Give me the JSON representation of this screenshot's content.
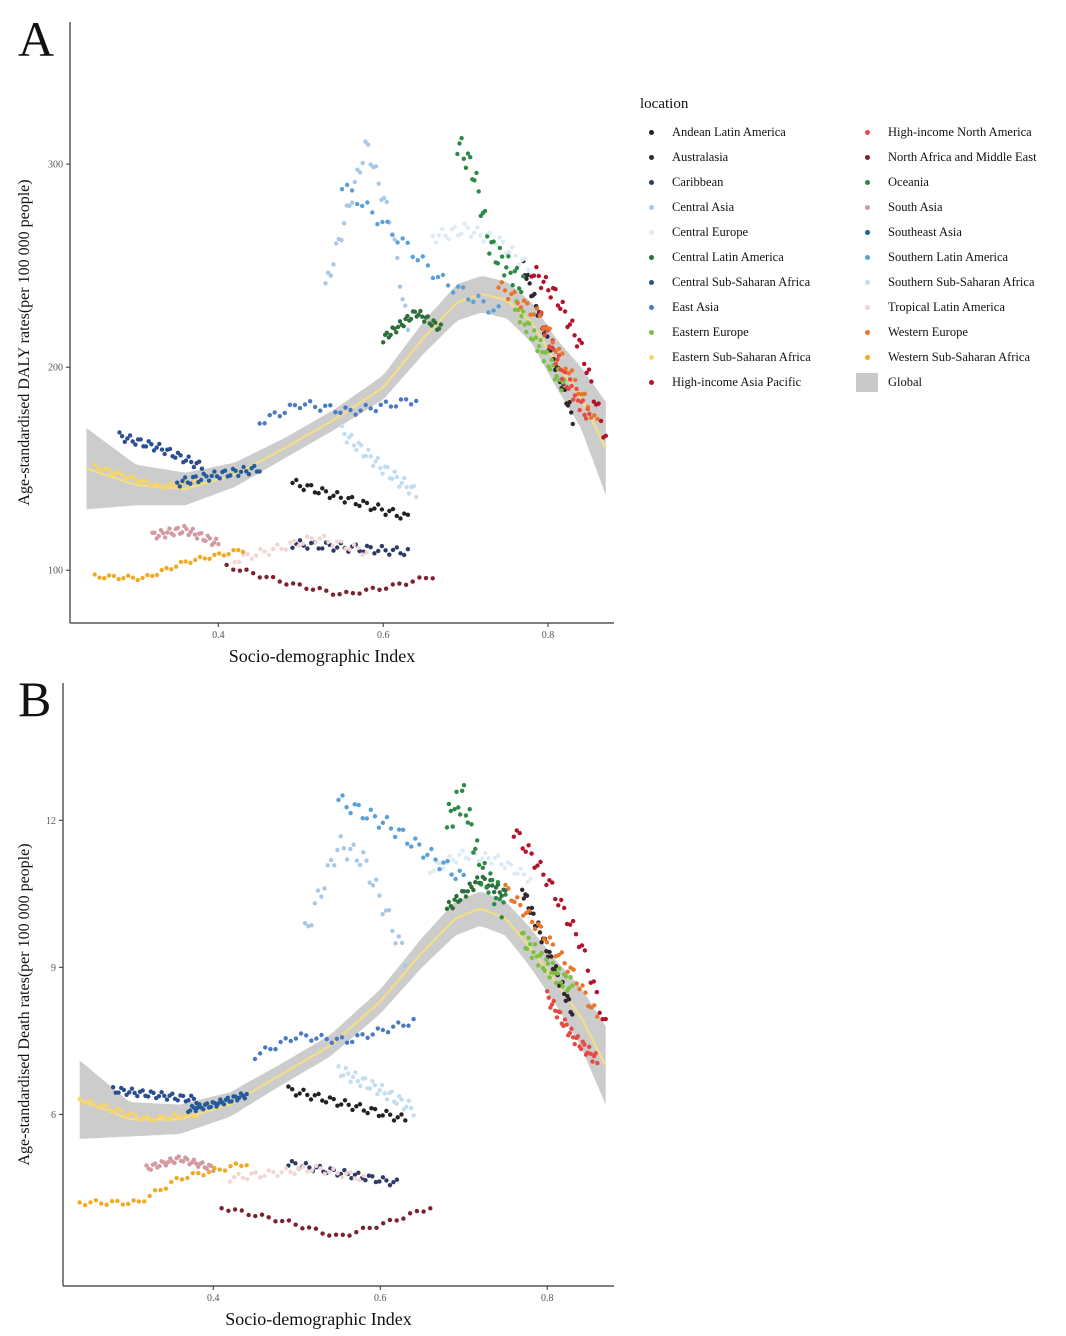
{
  "legend": {
    "title": "location",
    "items": [
      {
        "label": "Andean Latin America",
        "color": "#222222"
      },
      {
        "label": "Australasia",
        "color": "#33262c"
      },
      {
        "label": "Caribbean",
        "color": "#2f3b66"
      },
      {
        "label": "Central Asia",
        "color": "#a7c8e8"
      },
      {
        "label": "Central Europe",
        "color": "#dcebf7"
      },
      {
        "label": "Central Latin America",
        "color": "#2d6f3a"
      },
      {
        "label": "Central Sub-Saharan Africa",
        "color": "#2b4f8e"
      },
      {
        "label": "East Asia",
        "color": "#4b7ac4"
      },
      {
        "label": "Eastern Europe",
        "color": "#7cc042"
      },
      {
        "label": "Eastern Sub-Saharan Africa",
        "color": "#f6d46c"
      },
      {
        "label": "High-income Asia Pacific",
        "color": "#b3122b"
      },
      {
        "label": "High-income North America",
        "color": "#e64a44"
      },
      {
        "label": "North Africa and Middle East",
        "color": "#7b2231"
      },
      {
        "label": "Oceania",
        "color": "#2c8a46"
      },
      {
        "label": "South Asia",
        "color": "#d49aa3"
      },
      {
        "label": "Southeast Asia",
        "color": "#245b9b"
      },
      {
        "label": "Southern Latin America",
        "color": "#5aa0d8"
      },
      {
        "label": "Southern Sub-Saharan Africa",
        "color": "#c3ddf0"
      },
      {
        "label": "Tropical Latin America",
        "color": "#f2d6d6"
      },
      {
        "label": "Western Europe",
        "color": "#e8752c"
      },
      {
        "label": "Western Sub-Saharan Africa",
        "color": "#f2aa24"
      },
      {
        "label": "Global",
        "color": "#c9c9c9"
      }
    ]
  },
  "chart_data": [
    {
      "panel": "A",
      "type": "scatter",
      "xlabel": "Socio-demographic Index",
      "ylabel": "Age-standardised DALY rates(per 100 000 people)",
      "xlim": [
        0.22,
        0.88
      ],
      "ylim": [
        74,
        370
      ],
      "xticks": [
        0.4,
        0.6,
        0.8
      ],
      "yticks": [
        100,
        200,
        300
      ],
      "grid": false,
      "legend_position": "right",
      "global": {
        "x": [
          0.24,
          0.3,
          0.36,
          0.42,
          0.48,
          0.54,
          0.6,
          0.65,
          0.69,
          0.72,
          0.75,
          0.78,
          0.81,
          0.84,
          0.87
        ],
        "y": [
          150,
          142,
          140,
          147,
          160,
          174,
          190,
          215,
          232,
          236,
          233,
          222,
          202,
          185,
          160
        ],
        "band": [
          20,
          10,
          8,
          6,
          5,
          5,
          6,
          8,
          9,
          9,
          9,
          10,
          12,
          15,
          23
        ]
      },
      "series": [
        {
          "name": "Andean Latin America",
          "x": [
            0.49,
            0.63
          ],
          "y": [
            143,
            126
          ],
          "noise": 2
        },
        {
          "name": "Australasia",
          "x": [
            0.77,
            0.83
          ],
          "y": [
            250,
            175
          ],
          "noise": 3
        },
        {
          "name": "Caribbean",
          "x": [
            0.49,
            0.63
          ],
          "y": [
            113,
            109
          ],
          "noise": 2
        },
        {
          "name": "Central Asia",
          "x": [
            0.53,
            0.58,
            0.61,
            0.63
          ],
          "y": [
            239,
            310,
            270,
            218
          ],
          "noise": 4
        },
        {
          "name": "Central Europe",
          "x": [
            0.66,
            0.7,
            0.74,
            0.78
          ],
          "y": [
            264,
            268,
            262,
            248
          ],
          "noise": 3
        },
        {
          "name": "Central Latin America",
          "x": [
            0.6,
            0.64,
            0.67
          ],
          "y": [
            214,
            227,
            219
          ],
          "noise": 2
        },
        {
          "name": "Central Sub-Saharan Africa",
          "x": [
            0.28,
            0.33,
            0.38
          ],
          "y": [
            166,
            160,
            151
          ],
          "noise": 2
        },
        {
          "name": "East Asia",
          "x": [
            0.45,
            0.5,
            0.56,
            0.64
          ],
          "y": [
            173,
            182,
            178,
            184
          ],
          "noise": 2
        },
        {
          "name": "Eastern Europe",
          "x": [
            0.76,
            0.79,
            0.82
          ],
          "y": [
            230,
            210,
            190
          ],
          "noise": 4
        },
        {
          "name": "Eastern Sub-Saharan Africa",
          "x": [
            0.25,
            0.33,
            0.38
          ],
          "y": [
            151,
            141,
            144
          ],
          "noise": 1
        },
        {
          "name": "High-income Asia Pacific",
          "x": [
            0.78,
            0.81,
            0.84,
            0.87
          ],
          "y": [
            248,
            235,
            210,
            165
          ],
          "noise": 4
        },
        {
          "name": "High-income North America",
          "x": [
            0.79,
            0.82,
            0.85
          ],
          "y": [
            225,
            195,
            175
          ],
          "noise": 4
        },
        {
          "name": "North Africa and Middle East",
          "x": [
            0.41,
            0.49,
            0.55,
            0.61,
            0.66
          ],
          "y": [
            102,
            93,
            88,
            92,
            97
          ],
          "noise": 1
        },
        {
          "name": "Oceania",
          "x": [
            0.69,
            0.71,
            0.73,
            0.77
          ],
          "y": [
            311,
            296,
            259,
            240
          ],
          "noise": 6
        },
        {
          "name": "South Asia",
          "x": [
            0.32,
            0.36,
            0.4
          ],
          "y": [
            117,
            120,
            113
          ],
          "noise": 2
        },
        {
          "name": "Southeast Asia",
          "x": [
            0.35,
            0.4,
            0.45
          ],
          "y": [
            143,
            147,
            150
          ],
          "noise": 2
        },
        {
          "name": "Southern Latin America",
          "x": [
            0.55,
            0.62,
            0.67,
            0.74
          ],
          "y": [
            290,
            263,
            243,
            227
          ],
          "noise": 3
        },
        {
          "name": "Southern Sub-Saharan Africa",
          "x": [
            0.55,
            0.6,
            0.64
          ],
          "y": [
            168,
            150,
            138
          ],
          "noise": 3
        },
        {
          "name": "Tropical Latin America",
          "x": [
            0.42,
            0.52,
            0.58
          ],
          "y": [
            105,
            116,
            109
          ],
          "noise": 2
        },
        {
          "name": "Western Europe",
          "x": [
            0.74,
            0.79,
            0.83,
            0.86
          ],
          "y": [
            240,
            225,
            195,
            172
          ],
          "noise": 3
        },
        {
          "name": "Western Sub-Saharan Africa",
          "x": [
            0.25,
            0.31,
            0.36,
            0.43
          ],
          "y": [
            97,
            96,
            104,
            110
          ],
          "noise": 1
        }
      ]
    },
    {
      "panel": "B",
      "type": "scatter",
      "xlabel": "Socio-demographic Index",
      "ylabel": "Age-standardised Death rates(per 100 000 people)",
      "xlim": [
        0.22,
        0.88
      ],
      "ylim": [
        2.5,
        14.8
      ],
      "xticks": [
        0.4,
        0.6,
        0.8
      ],
      "yticks": [
        6,
        9,
        12
      ],
      "grid": false,
      "legend_position": "right",
      "global": {
        "x": [
          0.24,
          0.3,
          0.36,
          0.42,
          0.48,
          0.54,
          0.6,
          0.65,
          0.69,
          0.72,
          0.75,
          0.78,
          0.81,
          0.84,
          0.87
        ],
        "y": [
          6.3,
          5.9,
          5.9,
          6.2,
          6.8,
          7.4,
          8.3,
          9.3,
          10.0,
          10.2,
          10.0,
          9.4,
          8.7,
          8.0,
          7.0
        ],
        "band": [
          0.8,
          0.35,
          0.3,
          0.25,
          0.22,
          0.22,
          0.25,
          0.3,
          0.35,
          0.35,
          0.35,
          0.4,
          0.45,
          0.6,
          0.8
        ]
      },
      "series": [
        {
          "name": "Andean Latin America",
          "x": [
            0.49,
            0.63
          ],
          "y": [
            6.5,
            5.9
          ],
          "noise": 0.08
        },
        {
          "name": "Australasia",
          "x": [
            0.77,
            0.83
          ],
          "y": [
            10.6,
            8.1
          ],
          "noise": 0.12
        },
        {
          "name": "Caribbean",
          "x": [
            0.49,
            0.62
          ],
          "y": [
            5.0,
            4.6
          ],
          "noise": 0.07
        },
        {
          "name": "Central Asia",
          "x": [
            0.51,
            0.55,
            0.58,
            0.63
          ],
          "y": [
            9.7,
            11.5,
            11.2,
            9.2
          ],
          "noise": 0.2
        },
        {
          "name": "Central Europe",
          "x": [
            0.66,
            0.7,
            0.74,
            0.78
          ],
          "y": [
            11.0,
            11.3,
            11.2,
            10.8
          ],
          "noise": 0.1
        },
        {
          "name": "Central Latin America",
          "x": [
            0.68,
            0.72,
            0.75
          ],
          "y": [
            10.2,
            10.8,
            10.5
          ],
          "noise": 0.1
        },
        {
          "name": "Central Sub-Saharan Africa",
          "x": [
            0.28,
            0.33,
            0.38
          ],
          "y": [
            6.5,
            6.4,
            6.3
          ],
          "noise": 0.07
        },
        {
          "name": "East Asia",
          "x": [
            0.45,
            0.5,
            0.56,
            0.64
          ],
          "y": [
            7.2,
            7.6,
            7.5,
            7.9
          ],
          "noise": 0.07
        },
        {
          "name": "Eastern Europe",
          "x": [
            0.77,
            0.8,
            0.83
          ],
          "y": [
            9.6,
            9.0,
            8.6
          ],
          "noise": 0.18
        },
        {
          "name": "Eastern Sub-Saharan Africa",
          "x": [
            0.24,
            0.32,
            0.38
          ],
          "y": [
            6.3,
            5.9,
            6.0
          ],
          "noise": 0.05
        },
        {
          "name": "High-income Asia Pacific",
          "x": [
            0.76,
            0.8,
            0.84,
            0.87
          ],
          "y": [
            11.8,
            10.8,
            9.5,
            7.8
          ],
          "noise": 0.15
        },
        {
          "name": "High-income North America",
          "x": [
            0.8,
            0.83,
            0.86
          ],
          "y": [
            8.4,
            7.6,
            7.1
          ],
          "noise": 0.12
        },
        {
          "name": "North Africa and Middle East",
          "x": [
            0.41,
            0.49,
            0.55,
            0.61,
            0.66
          ],
          "y": [
            4.1,
            3.8,
            3.5,
            3.8,
            4.1
          ],
          "noise": 0.04
        },
        {
          "name": "Oceania",
          "x": [
            0.68,
            0.7,
            0.72,
            0.75
          ],
          "y": [
            12.0,
            12.5,
            11.0,
            10.2
          ],
          "noise": 0.3
        },
        {
          "name": "South Asia",
          "x": [
            0.32,
            0.36,
            0.4
          ],
          "y": [
            4.9,
            5.1,
            4.9
          ],
          "noise": 0.06
        },
        {
          "name": "Southeast Asia",
          "x": [
            0.37,
            0.4,
            0.44
          ],
          "y": [
            6.1,
            6.2,
            6.4
          ],
          "noise": 0.06
        },
        {
          "name": "Southern Latin America",
          "x": [
            0.55,
            0.61,
            0.65,
            0.7
          ],
          "y": [
            12.4,
            11.9,
            11.4,
            10.8
          ],
          "noise": 0.15
        },
        {
          "name": "Southern Sub-Saharan Africa",
          "x": [
            0.55,
            0.6,
            0.64
          ],
          "y": [
            6.9,
            6.5,
            6.1
          ],
          "noise": 0.12
        },
        {
          "name": "Tropical Latin America",
          "x": [
            0.42,
            0.52,
            0.58
          ],
          "y": [
            4.7,
            4.9,
            4.7
          ],
          "noise": 0.07
        },
        {
          "name": "Western Europe",
          "x": [
            0.75,
            0.79,
            0.83,
            0.86
          ],
          "y": [
            10.6,
            9.8,
            8.9,
            8.0
          ],
          "noise": 0.12
        },
        {
          "name": "Western Sub-Saharan Africa",
          "x": [
            0.24,
            0.31,
            0.36,
            0.44
          ],
          "y": [
            4.2,
            4.2,
            4.7,
            5.0
          ],
          "noise": 0.05
        }
      ]
    }
  ]
}
